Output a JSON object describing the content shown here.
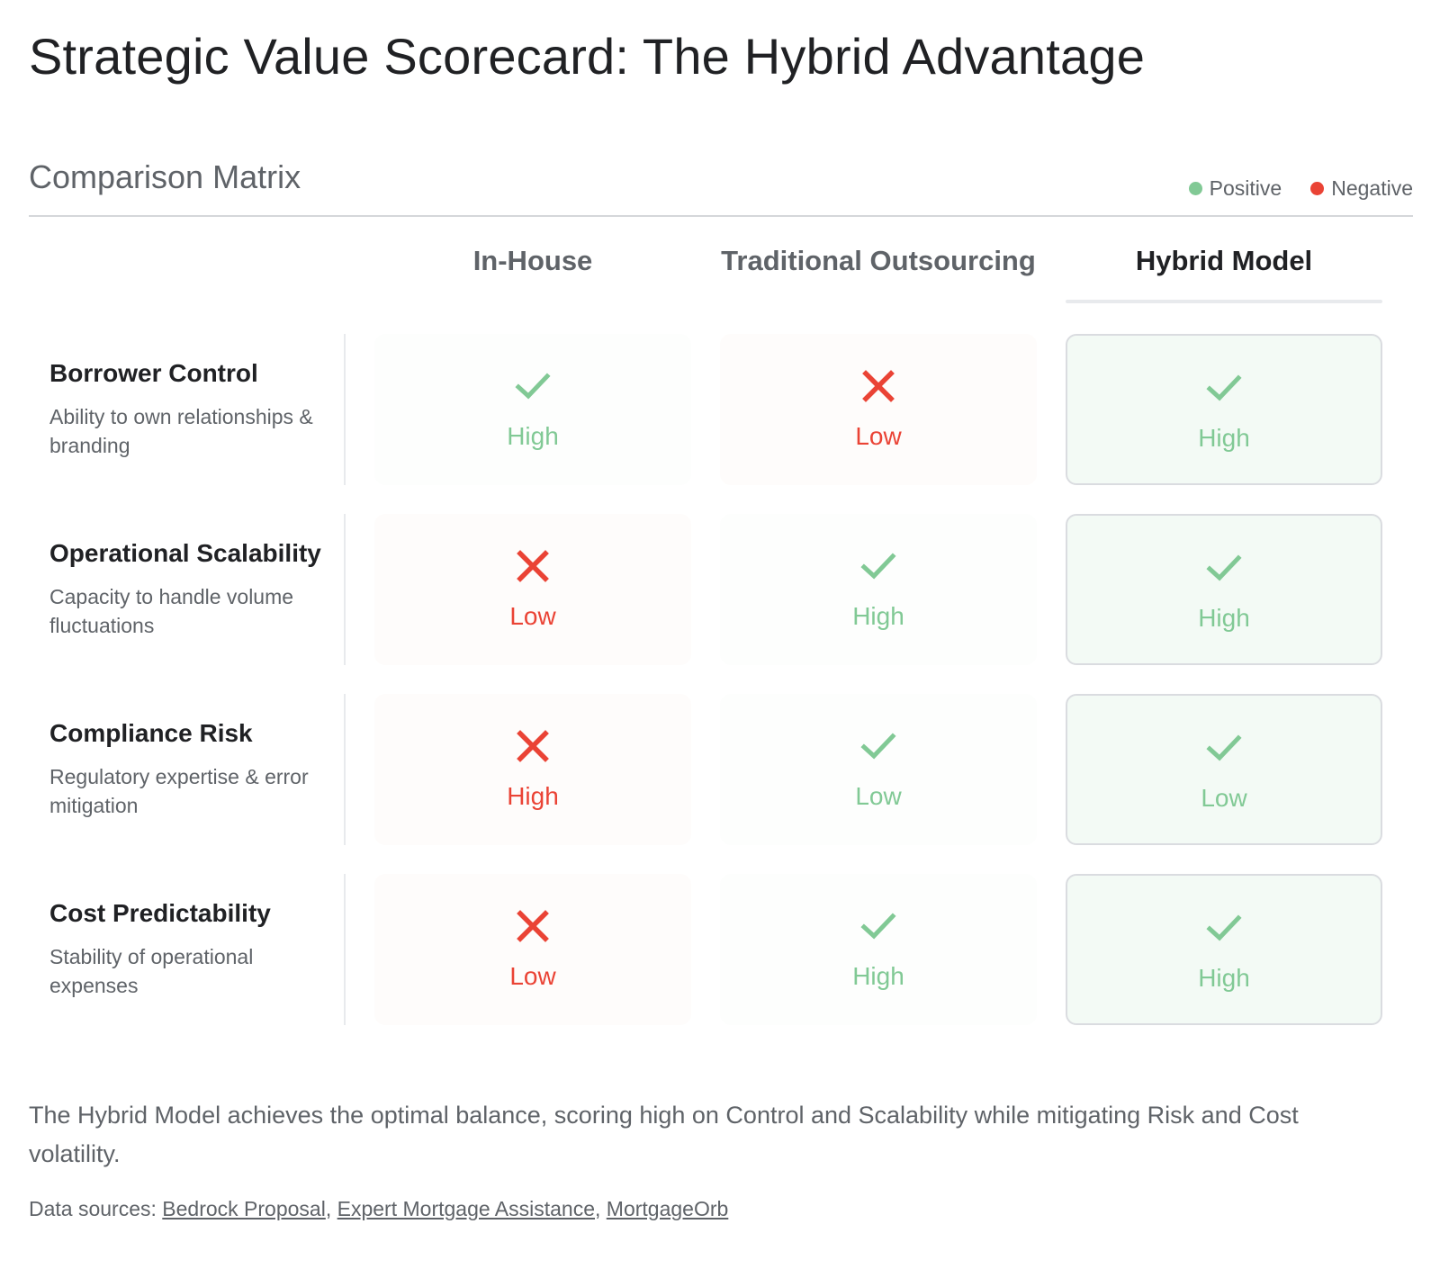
{
  "title": "Strategic Value Scorecard: The Hybrid Advantage",
  "subtitle": "Comparison Matrix",
  "colors": {
    "positive": "#81c995",
    "negative": "#ea4335"
  },
  "legend": {
    "positive": "Positive",
    "negative": "Negative"
  },
  "columns": [
    "In-House",
    "Traditional Outsourcing",
    "Hybrid Model"
  ],
  "rows": [
    {
      "title": "Borrower Control",
      "desc": "Ability to own relationships & branding",
      "cells": [
        {
          "value": "High",
          "status": "positive",
          "icon": "check-icon"
        },
        {
          "value": "Low",
          "status": "negative",
          "icon": "cross-icon"
        },
        {
          "value": "High",
          "status": "positive",
          "icon": "check-icon"
        }
      ]
    },
    {
      "title": "Operational Scalability",
      "desc": "Capacity to handle volume fluctuations",
      "cells": [
        {
          "value": "Low",
          "status": "negative",
          "icon": "cross-icon"
        },
        {
          "value": "High",
          "status": "positive",
          "icon": "check-icon"
        },
        {
          "value": "High",
          "status": "positive",
          "icon": "check-icon"
        }
      ]
    },
    {
      "title": "Compliance Risk",
      "desc": "Regulatory expertise & error mitigation",
      "cells": [
        {
          "value": "High",
          "status": "negative",
          "icon": "cross-icon"
        },
        {
          "value": "Low",
          "status": "positive",
          "icon": "check-icon"
        },
        {
          "value": "Low",
          "status": "positive",
          "icon": "check-icon"
        }
      ]
    },
    {
      "title": "Cost Predictability",
      "desc": "Stability of operational expenses",
      "cells": [
        {
          "value": "Low",
          "status": "negative",
          "icon": "cross-icon"
        },
        {
          "value": "High",
          "status": "positive",
          "icon": "check-icon"
        },
        {
          "value": "High",
          "status": "positive",
          "icon": "check-icon"
        }
      ]
    }
  ],
  "summary": "The Hybrid Model achieves the optimal balance, scoring high on Control and Scalability while mitigating Risk and Cost volatility.",
  "sources": {
    "prefix": "Data sources: ",
    "links": [
      "Bedrock Proposal",
      "Expert Mortgage Assistance",
      "MortgageOrb"
    ]
  }
}
